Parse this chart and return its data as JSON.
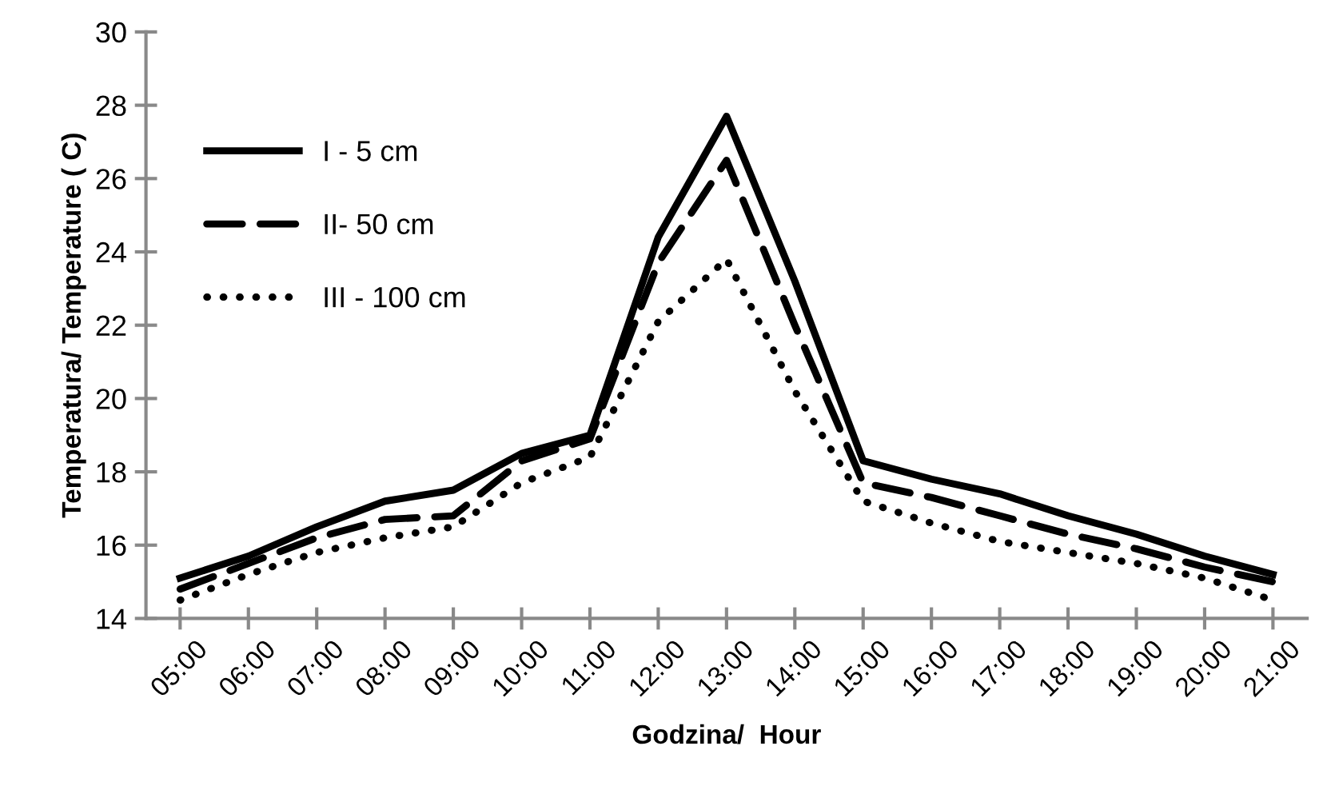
{
  "chart_data": {
    "type": "line",
    "xlabel": "Godzina/  Hour",
    "ylabel": "Temperatura/ Temperature ( C)",
    "categories": [
      "05:00",
      "06:00",
      "07:00",
      "08:00",
      "09:00",
      "10:00",
      "11:00",
      "12:00",
      "13:00",
      "14:00",
      "15:00",
      "16:00",
      "17:00",
      "18:00",
      "19:00",
      "20:00",
      "21:00"
    ],
    "series": [
      {
        "name": "I - 5 cm",
        "color": "#000000",
        "line_style": "solid",
        "values": [
          15.1,
          15.7,
          16.5,
          17.2,
          17.5,
          18.5,
          19.0,
          24.4,
          27.7,
          23.2,
          18.3,
          17.8,
          17.4,
          16.8,
          16.3,
          15.7,
          15.2
        ]
      },
      {
        "name": "II- 50 cm",
        "color": "#000000",
        "line_style": "dashed",
        "values": [
          14.8,
          15.5,
          16.2,
          16.7,
          16.8,
          18.3,
          18.9,
          23.7,
          26.5,
          22.0,
          17.7,
          17.3,
          16.8,
          16.3,
          15.9,
          15.4,
          15.0
        ]
      },
      {
        "name": "III - 100 cm",
        "color": "#000000",
        "line_style": "dotted",
        "values": [
          14.5,
          15.2,
          15.8,
          16.2,
          16.5,
          17.7,
          18.4,
          22.1,
          23.8,
          20.2,
          17.2,
          16.6,
          16.1,
          15.8,
          15.5,
          15.1,
          14.5
        ]
      }
    ],
    "ylim": [
      14,
      30
    ],
    "yticks": [
      14,
      16,
      18,
      20,
      22,
      24,
      26,
      28,
      30
    ],
    "grid": false,
    "legend": "top left",
    "marker": "none"
  }
}
